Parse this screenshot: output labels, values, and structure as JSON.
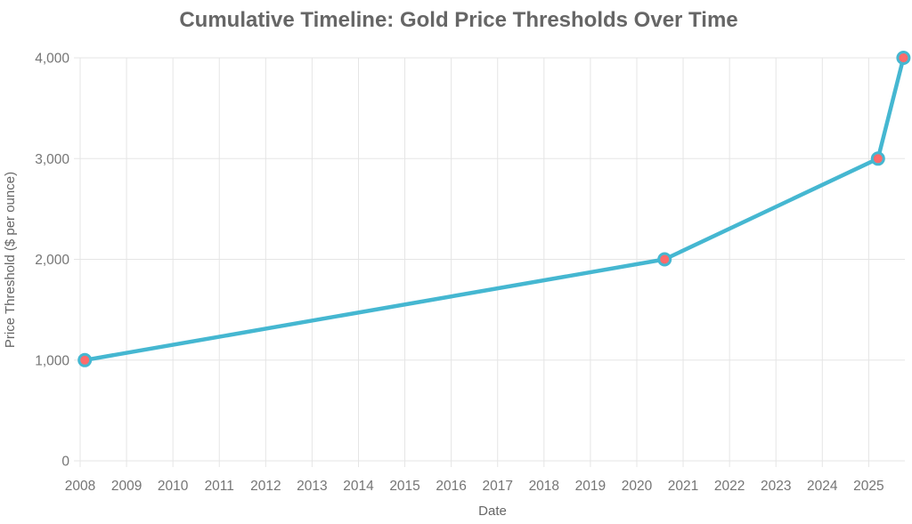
{
  "chart_data": {
    "type": "line",
    "title": "Cumulative Timeline: Gold Price Thresholds Over Time",
    "xlabel": "Date",
    "ylabel": "Price Threshold ($ per ounce)",
    "xlim": [
      2008,
      2025.78
    ],
    "ylim": [
      0,
      4000
    ],
    "grid": true,
    "legend": "none",
    "x_ticks": [
      {
        "value": 2008,
        "label": "2008"
      },
      {
        "value": 2009,
        "label": "2009"
      },
      {
        "value": 2010,
        "label": "2010"
      },
      {
        "value": 2011,
        "label": "2011"
      },
      {
        "value": 2012,
        "label": "2012"
      },
      {
        "value": 2013,
        "label": "2013"
      },
      {
        "value": 2014,
        "label": "2014"
      },
      {
        "value": 2015,
        "label": "2015"
      },
      {
        "value": 2016,
        "label": "2016"
      },
      {
        "value": 2017,
        "label": "2017"
      },
      {
        "value": 2018,
        "label": "2018"
      },
      {
        "value": 2019,
        "label": "2019"
      },
      {
        "value": 2020,
        "label": "2020"
      },
      {
        "value": 2021,
        "label": "2021"
      },
      {
        "value": 2022,
        "label": "2022"
      },
      {
        "value": 2023,
        "label": "2023"
      },
      {
        "value": 2024,
        "label": "2024"
      },
      {
        "value": 2025,
        "label": "2025"
      }
    ],
    "y_ticks": [
      {
        "value": 0,
        "label": "0"
      },
      {
        "value": 1000,
        "label": "1,000"
      },
      {
        "value": 2000,
        "label": "2,000"
      },
      {
        "value": 3000,
        "label": "3,000"
      },
      {
        "value": 4000,
        "label": "4,000"
      }
    ],
    "series": [
      {
        "name": "gold-price-threshold",
        "points": [
          {
            "x": 2008.1,
            "y": 1000
          },
          {
            "x": 2020.6,
            "y": 2000
          },
          {
            "x": 2025.2,
            "y": 3000
          },
          {
            "x": 2025.75,
            "y": 4000
          }
        ]
      }
    ],
    "colors": {
      "line": "#45B7D1",
      "marker_fill": "#FF6B6B",
      "marker_border": "#45B7D1",
      "grid": "#e5e5e5",
      "tick_text": "#757575",
      "axis_title_text": "#666666",
      "title_text": "#666666",
      "background": "#ffffff"
    },
    "style": {
      "line_width": 4.5,
      "marker_radius": 6.5,
      "marker_border_width": 3
    }
  }
}
